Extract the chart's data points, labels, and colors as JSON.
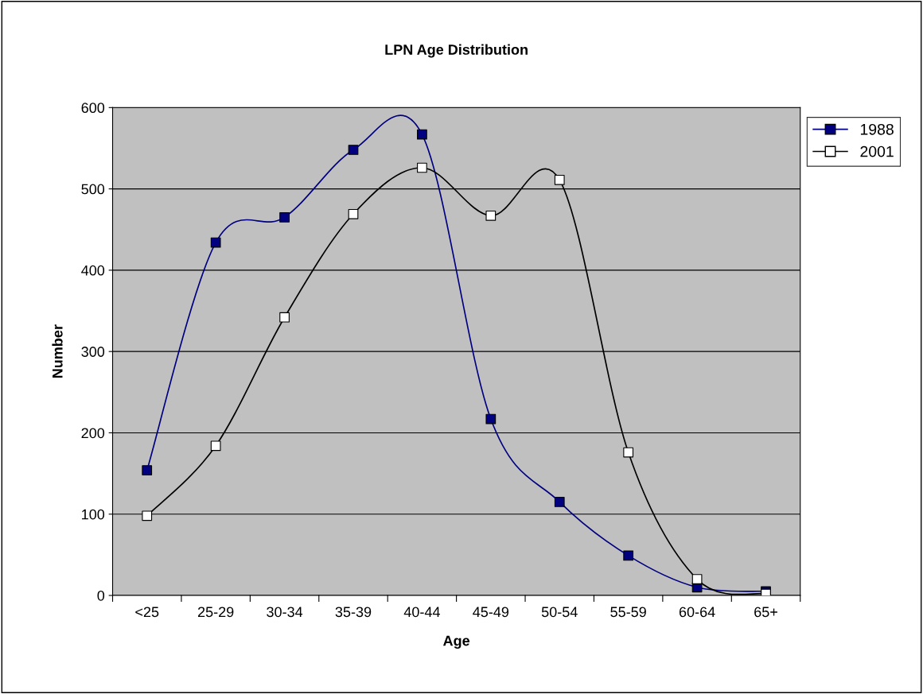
{
  "chart_data": {
    "type": "line",
    "title": "LPN Age Distribution",
    "xlabel": "Age",
    "ylabel": "Number",
    "categories": [
      "<25",
      "25-29",
      "30-34",
      "35-39",
      "40-44",
      "45-49",
      "50-54",
      "55-59",
      "60-64",
      "65+"
    ],
    "series": [
      {
        "name": "1988",
        "color": "#000080",
        "values": [
          154,
          434,
          465,
          548,
          567,
          217,
          115,
          49,
          10,
          5
        ]
      },
      {
        "name": "2001",
        "color": "#000000",
        "values": [
          98,
          184,
          342,
          469,
          526,
          467,
          511,
          176,
          20,
          2
        ]
      }
    ],
    "ylim": [
      0,
      600
    ],
    "yticks": [
      0,
      100,
      200,
      300,
      400,
      500,
      600
    ],
    "grid": "y",
    "legend": "right",
    "marker": "square",
    "line_style": "solid"
  }
}
